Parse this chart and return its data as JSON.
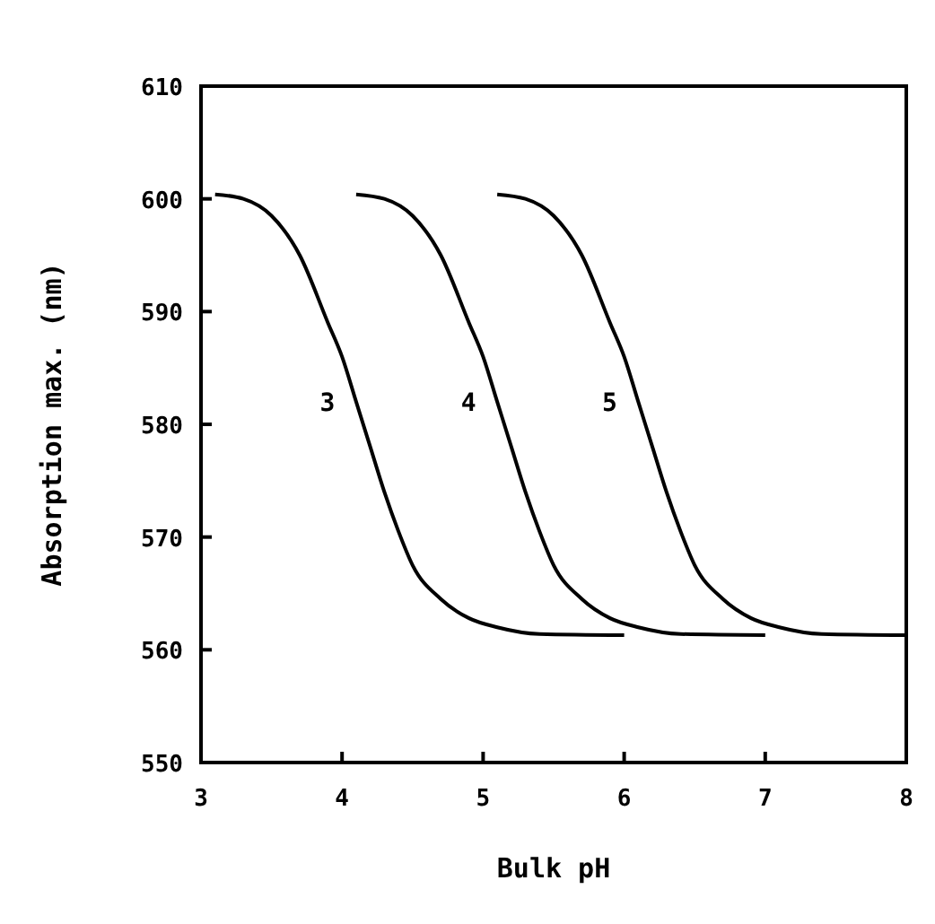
{
  "chart_data": {
    "type": "line",
    "xlabel": "Bulk pH",
    "ylabel": "Absorption max. (nm)",
    "xlim": [
      3,
      8
    ],
    "ylim": [
      550,
      610
    ],
    "xticks": [
      3,
      4,
      5,
      6,
      7,
      8
    ],
    "yticks": [
      550,
      560,
      570,
      580,
      590,
      600,
      610
    ],
    "grid": false,
    "marker": "none",
    "line_style": "solid",
    "series": [
      {
        "name": "3",
        "color": "#000000",
        "x": [
          3.1,
          3.3,
          3.5,
          3.7,
          3.9,
          4.0,
          4.1,
          4.2,
          4.3,
          4.4,
          4.5,
          4.7,
          4.9,
          5.1,
          5.4,
          6.0
        ],
        "values": [
          600.4,
          600,
          598.5,
          595,
          589,
          586,
          582,
          578,
          574,
          570.5,
          567.5,
          564.5,
          562.8,
          562,
          561.4,
          561.3
        ]
      },
      {
        "name": "4",
        "color": "#000000",
        "x": [
          4.1,
          4.3,
          4.5,
          4.7,
          4.9,
          5.0,
          5.1,
          5.2,
          5.3,
          5.4,
          5.5,
          5.7,
          5.9,
          6.1,
          6.4,
          7.0
        ],
        "values": [
          600.4,
          600,
          598.5,
          595,
          589,
          586,
          582,
          578,
          574,
          570.5,
          567.5,
          564.5,
          562.8,
          562,
          561.4,
          561.3
        ]
      },
      {
        "name": "5",
        "color": "#000000",
        "x": [
          5.1,
          5.3,
          5.5,
          5.7,
          5.9,
          6.0,
          6.1,
          6.2,
          6.3,
          6.4,
          6.5,
          6.7,
          6.9,
          7.1,
          7.4,
          8.0
        ],
        "values": [
          600.4,
          600,
          598.5,
          595,
          589,
          586,
          582,
          578,
          574,
          570.5,
          567.5,
          564.5,
          562.8,
          562,
          561.4,
          561.3
        ]
      }
    ]
  }
}
